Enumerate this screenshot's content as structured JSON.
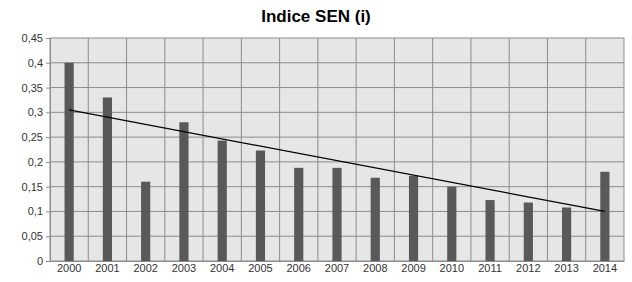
{
  "chart_data": {
    "type": "bar",
    "title": "Indice SEN (i)",
    "categories": [
      "2000",
      "2001",
      "2002",
      "2003",
      "2004",
      "2005",
      "2006",
      "2007",
      "2008",
      "2009",
      "2010",
      "2011",
      "2012",
      "2013",
      "2014"
    ],
    "values": [
      0.4,
      0.33,
      0.16,
      0.28,
      0.243,
      0.223,
      0.188,
      0.188,
      0.168,
      0.172,
      0.15,
      0.123,
      0.118,
      0.108,
      0.18
    ],
    "trend_line": [
      0.305,
      0.1
    ],
    "color": "#595959",
    "ylim": [
      0,
      0.45
    ],
    "yticks": [
      0,
      {
        "value": 0.05,
        "label": "0,05"
      },
      {
        "value": 0.1,
        "label": "0,1"
      },
      {
        "value": 0.15,
        "label": "0,15"
      },
      {
        "value": 0.2,
        "label": "0,2"
      },
      {
        "value": 0.25,
        "label": "0,25"
      },
      {
        "value": 0.3,
        "label": "0,3"
      },
      {
        "value": 0.35,
        "label": "0,35"
      },
      {
        "value": 0.4,
        "label": "0,4"
      },
      {
        "value": 0.45,
        "label": "0,45"
      }
    ],
    "grid": true
  }
}
